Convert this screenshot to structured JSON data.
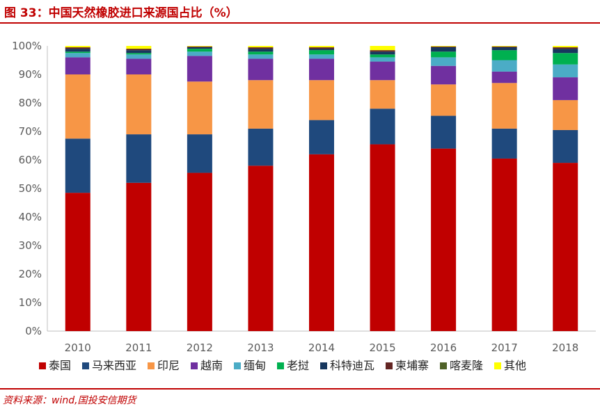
{
  "header": {
    "title": "图 33：中国天然橡胶进口来源国占比（%）"
  },
  "footer": {
    "source": "资料来源：wind,国投安信期货"
  },
  "chart_data": {
    "type": "bar",
    "stacked": true,
    "categories": [
      "2010",
      "2011",
      "2012",
      "2013",
      "2014",
      "2015",
      "2016",
      "2017",
      "2018"
    ],
    "ylim": [
      0,
      100
    ],
    "yticks": [
      "0%",
      "10%",
      "20%",
      "30%",
      "40%",
      "50%",
      "60%",
      "70%",
      "80%",
      "90%",
      "100%"
    ],
    "grid": false,
    "legend_position": "bottom",
    "series": [
      {
        "name": "泰国",
        "color": "#c00000",
        "values": [
          48.5,
          52.0,
          55.5,
          58.0,
          62.0,
          65.5,
          64.0,
          60.5,
          59.0
        ]
      },
      {
        "name": "马来西亚",
        "color": "#1f497d",
        "values": [
          19.0,
          17.0,
          13.5,
          13.0,
          12.0,
          12.5,
          11.5,
          10.5,
          11.5
        ]
      },
      {
        "name": "印尼",
        "color": "#f79646",
        "values": [
          22.5,
          21.0,
          18.5,
          17.0,
          14.0,
          10.0,
          11.0,
          16.0,
          10.5
        ]
      },
      {
        "name": "越南",
        "color": "#7030a0",
        "values": [
          6.0,
          5.5,
          9.0,
          7.5,
          7.5,
          6.5,
          6.5,
          4.0,
          8.0
        ]
      },
      {
        "name": "缅甸",
        "color": "#4bacc6",
        "values": [
          1.5,
          1.5,
          1.5,
          1.5,
          1.5,
          1.5,
          3.0,
          4.0,
          4.5
        ]
      },
      {
        "name": "老挝",
        "color": "#00b050",
        "values": [
          0.5,
          0.5,
          1.0,
          1.0,
          1.5,
          1.0,
          2.0,
          3.5,
          4.0
        ]
      },
      {
        "name": "科特迪瓦",
        "color": "#17375e",
        "values": [
          1.0,
          1.0,
          0.5,
          1.0,
          0.5,
          1.0,
          1.5,
          1.0,
          1.5
        ]
      },
      {
        "name": "柬埔寨",
        "color": "#632523",
        "values": [
          0.5,
          0.5,
          0.3,
          0.5,
          0.5,
          0.5,
          0.3,
          0.3,
          0.5
        ]
      },
      {
        "name": "喀麦隆",
        "color": "#4f6228",
        "values": [
          0.0,
          0.0,
          0.0,
          0.0,
          0.0,
          0.0,
          0.0,
          0.0,
          0.0
        ]
      },
      {
        "name": "其他",
        "color": "#ffff00",
        "values": [
          0.5,
          1.0,
          0.2,
          0.5,
          0.5,
          1.5,
          0.2,
          0.2,
          0.5
        ]
      }
    ]
  }
}
